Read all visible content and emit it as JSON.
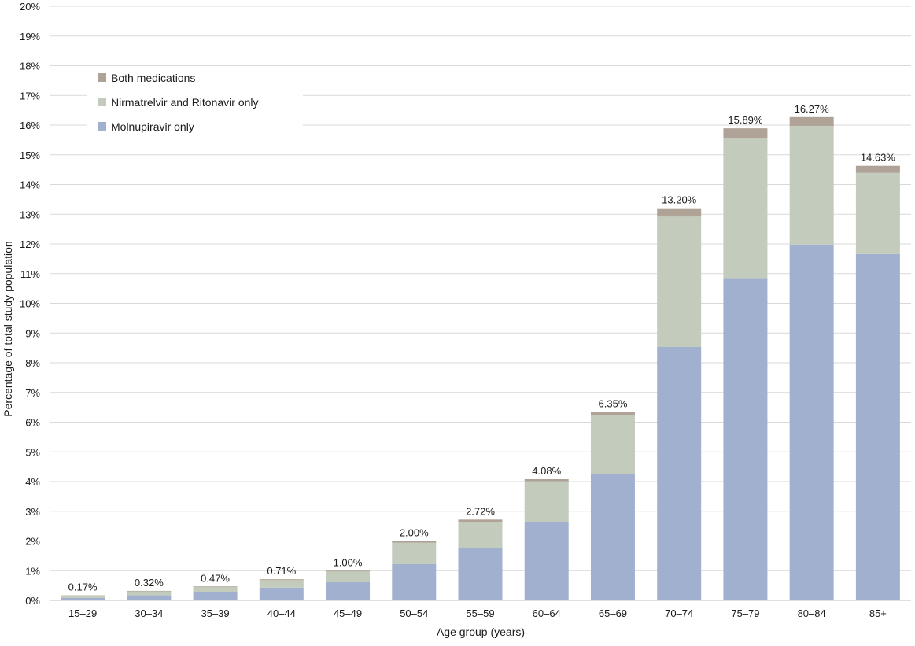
{
  "chart_data": {
    "type": "bar",
    "stacked": true,
    "xlabel": "Age group (years)",
    "ylabel": "Percentage of total study population",
    "ylim": [
      0,
      20
    ],
    "ytick_step": 1,
    "ytick_suffix": "%",
    "grid": true,
    "legend_position": "top-left",
    "categories": [
      "15–29",
      "30–34",
      "35–39",
      "40–44",
      "45–49",
      "50–54",
      "55–59",
      "60–64",
      "65–69",
      "70–74",
      "75–79",
      "80–84",
      "85+"
    ],
    "series": [
      {
        "name": "Molnupiravir only",
        "color": "#a2b0cf",
        "values": [
          0.08,
          0.17,
          0.27,
          0.43,
          0.61,
          1.22,
          1.75,
          2.65,
          4.25,
          8.53,
          10.85,
          11.98,
          11.66
        ]
      },
      {
        "name": "Nirmatrelvir and Ritonavir only",
        "color": "#c2cbbc",
        "values": [
          0.08,
          0.13,
          0.18,
          0.25,
          0.36,
          0.72,
          0.89,
          1.36,
          1.97,
          4.39,
          4.71,
          3.99,
          2.73
        ]
      },
      {
        "name": "Both medications",
        "color": "#aea396",
        "values": [
          0.01,
          0.02,
          0.02,
          0.03,
          0.03,
          0.06,
          0.08,
          0.07,
          0.13,
          0.28,
          0.33,
          0.3,
          0.24
        ]
      }
    ],
    "totals_labels": [
      "0.17%",
      "0.32%",
      "0.47%",
      "0.71%",
      "1.00%",
      "2.00%",
      "2.72%",
      "4.08%",
      "6.35%",
      "13.20%",
      "15.89%",
      "16.27%",
      "14.63%"
    ],
    "totals": [
      0.17,
      0.32,
      0.47,
      0.71,
      1.0,
      2.0,
      2.72,
      4.08,
      6.35,
      13.2,
      15.89,
      16.27,
      14.63
    ],
    "legend_order": [
      "Both medications",
      "Nirmatrelvir and Ritonavir only",
      "Molnupiravir only"
    ]
  }
}
